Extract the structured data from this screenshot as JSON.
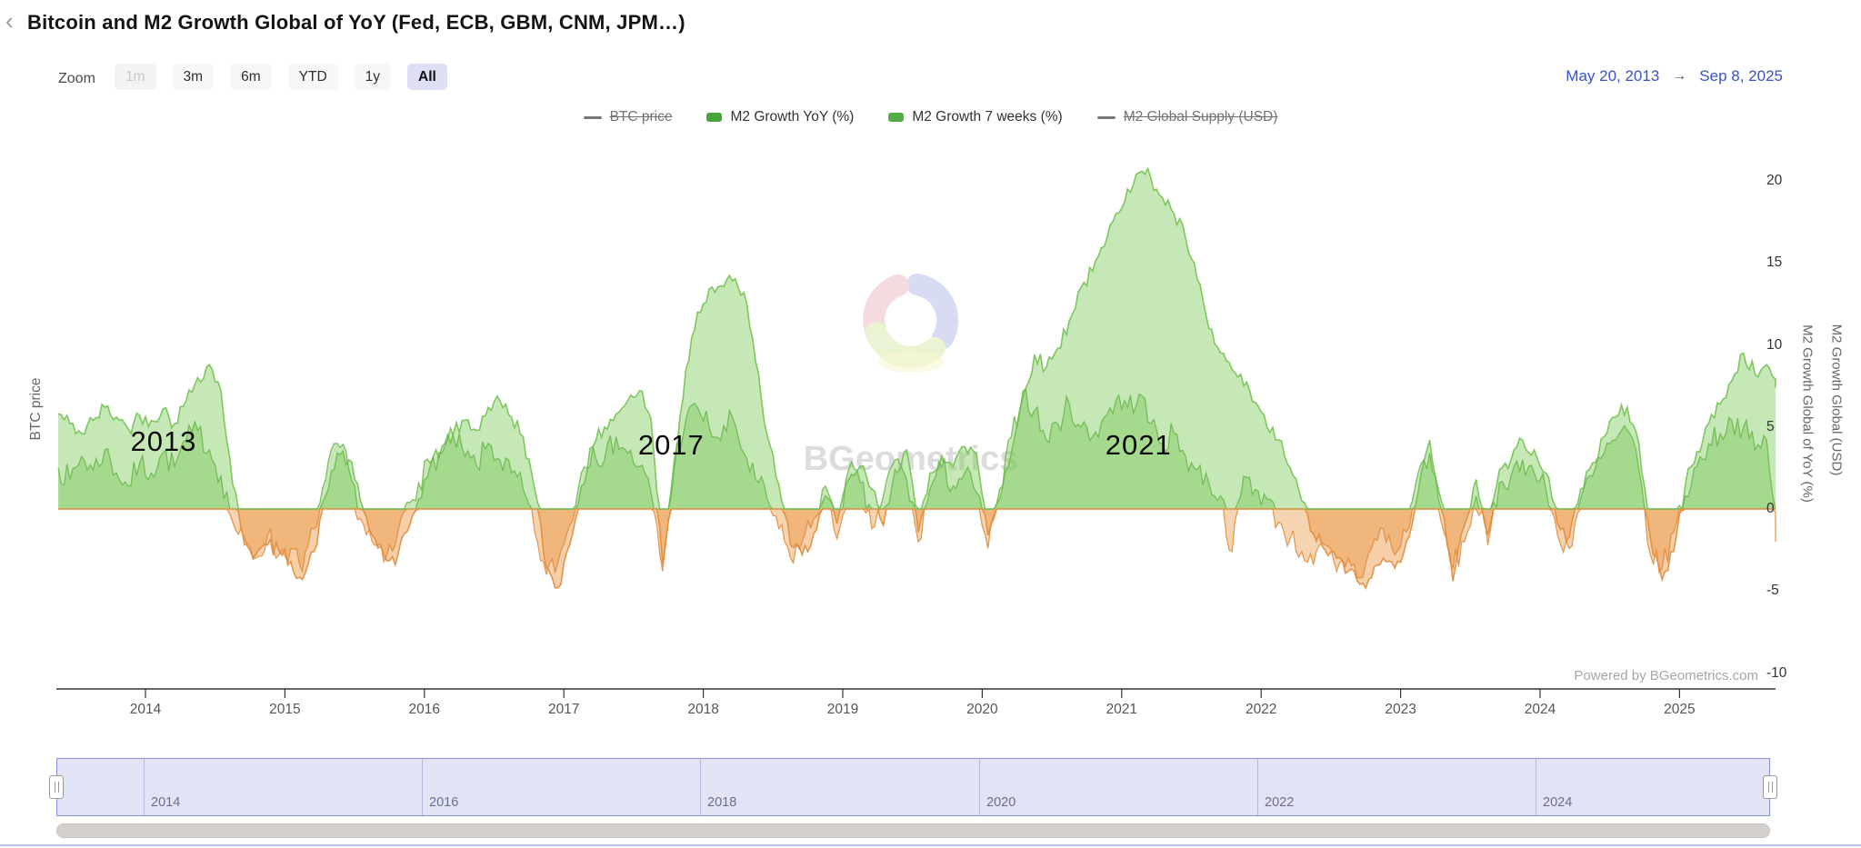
{
  "header": {
    "back_chevron": "‹",
    "title": "Bitcoin and M2 Growth Global of YoY (Fed, ECB, GBM, CNM, JPM…)"
  },
  "range_selector": {
    "zoom_label": "Zoom",
    "buttons": [
      {
        "label": "1m",
        "state": "disabled"
      },
      {
        "label": "3m",
        "state": "normal"
      },
      {
        "label": "6m",
        "state": "normal"
      },
      {
        "label": "YTD",
        "state": "normal"
      },
      {
        "label": "1y",
        "state": "normal"
      },
      {
        "label": "All",
        "state": "selected"
      }
    ],
    "date_from": "May 20, 2013",
    "arrow": "→",
    "date_to": "Sep 8, 2025"
  },
  "legend": {
    "items": [
      {
        "label": "BTC price",
        "marker": "line",
        "color": "#777777",
        "disabled": true
      },
      {
        "label": "M2 Growth YoY (%)",
        "marker": "square",
        "color": "#47a53a",
        "disabled": false
      },
      {
        "label": "M2 Growth 7 weeks (%)",
        "marker": "square",
        "color": "#52ae43",
        "disabled": false
      },
      {
        "label": "M2 Global Supply (USD)",
        "marker": "line",
        "color": "#777777",
        "disabled": true
      }
    ]
  },
  "watermark": {
    "text": "BGeometrics"
  },
  "powered_by": "Powered by BGeometrics.com",
  "navigator": {
    "labels": [
      "2014",
      "2016",
      "2018",
      "2020",
      "2022",
      "2024"
    ],
    "years": [
      2014,
      2016,
      2018,
      2020,
      2022,
      2024
    ]
  },
  "chart_data": {
    "type": "area",
    "title": "Bitcoin and M2 Growth Global of YoY",
    "x_axis": {
      "labels": [
        "2014",
        "2015",
        "2016",
        "2017",
        "2018",
        "2019",
        "2020",
        "2021",
        "2022",
        "2023",
        "2024",
        "2025"
      ],
      "years": [
        2014,
        2015,
        2016,
        2017,
        2018,
        2019,
        2020,
        2021,
        2022,
        2023,
        2024,
        2025
      ],
      "range_decimal_years": [
        2013.38,
        2025.69
      ]
    },
    "y_axis": {
      "ticks": [
        20,
        15,
        10,
        5,
        0,
        -5,
        -10
      ],
      "range": [
        -11,
        22
      ],
      "title_left": "BTC price",
      "title_right_inner": "M2 Growth Global of YoY (%)",
      "title_right_outer": "M2 Growth Global (USD)",
      "grid": false
    },
    "legend_position": "top",
    "sampling": {
      "cadence": "monthly",
      "start_year": 2013,
      "start_month": 5,
      "end_year": 2025,
      "end_month": 9
    },
    "series": [
      {
        "name": "M2 Growth YoY (%)",
        "positive_fill": "rgba(128,204,93,0.45)",
        "negative_fill": "rgba(235,147,60,0.45)",
        "positive_stroke": "rgba(110,190,75,0.85)",
        "negative_stroke": "rgba(225,140,60,0.9)",
        "values": [
          5.8,
          5.2,
          4.6,
          5.4,
          6.2,
          5.6,
          4.9,
          5.7,
          5.4,
          6.1,
          5.2,
          6.6,
          8.0,
          8.8,
          7.2,
          1.5,
          -1.8,
          -2.8,
          -2.2,
          -2.6,
          -3.2,
          -4.3,
          -2.6,
          0.8,
          3.4,
          3.0,
          0.5,
          -1.6,
          -2.8,
          -3.4,
          -1.4,
          0.6,
          2.6,
          3.8,
          4.6,
          5.4,
          4.8,
          6.2,
          6.6,
          5.6,
          4.4,
          1.2,
          -3.6,
          -4.8,
          -2.2,
          1.4,
          3.8,
          5.0,
          5.8,
          6.6,
          7.2,
          5.5,
          -3.4,
          2.5,
          8.5,
          12.0,
          13.4,
          13.6,
          13.9,
          13.2,
          9.0,
          4.5,
          1.5,
          -2.2,
          -2.8,
          -1.5,
          0.8,
          -0.9,
          1.8,
          2.6,
          1.2,
          -1.0,
          2.4,
          3.6,
          -1.4,
          2.2,
          3.2,
          2.6,
          3.8,
          3.4,
          -1.6,
          1.2,
          3.4,
          6.8,
          9.4,
          8.6,
          9.8,
          11.5,
          13.5,
          14.5,
          16.0,
          18.0,
          19.5,
          20.5,
          20.2,
          19.0,
          18.0,
          16.5,
          14.0,
          11.0,
          9.5,
          8.5,
          7.5,
          6.5,
          5.0,
          4.2,
          2.5,
          0.5,
          -1.5,
          -2.5,
          -3.0,
          -3.8,
          -4.6,
          -4.2,
          -3.0,
          -3.6,
          -2.0,
          1.0,
          4.2,
          0.5,
          -4.4,
          -1.0,
          1.8,
          -1.6,
          2.4,
          3.0,
          4.2,
          3.6,
          2.2,
          -0.9,
          -1.7,
          1.2,
          2.8,
          4.4,
          5.6,
          6.2,
          4.0,
          -1.8,
          -4.3,
          -2.6,
          1.5,
          3.5,
          5.2,
          6.4,
          7.8,
          9.5,
          8.2,
          8.8,
          7.4
        ]
      },
      {
        "name": "M2 Growth 7 weeks (%)",
        "positive_fill": "rgba(116,196,80,0.40)",
        "negative_fill": "rgba(235,147,60,0.40)",
        "positive_stroke": "rgba(100,180,70,0.8)",
        "negative_stroke": "rgba(225,140,60,0.85)",
        "values": [
          2.5,
          1.8,
          3.2,
          2.4,
          3.6,
          2.2,
          1.4,
          2.8,
          2.2,
          3.4,
          2.6,
          4.2,
          4.8,
          3.6,
          2.0,
          -0.8,
          -2.2,
          -3.0,
          -1.6,
          -2.8,
          -2.4,
          -3.8,
          -1.2,
          1.8,
          4.0,
          2.4,
          -0.6,
          -2.0,
          -3.2,
          -2.2,
          0.4,
          1.6,
          2.8,
          3.4,
          4.4,
          3.2,
          2.6,
          4.0,
          3.0,
          2.2,
          1.2,
          -1.4,
          -4.0,
          -3.2,
          -1.0,
          2.2,
          3.8,
          3.0,
          4.4,
          3.4,
          2.6,
          1.0,
          -3.8,
          3.0,
          5.4,
          6.2,
          5.0,
          4.2,
          5.6,
          3.4,
          1.8,
          0.6,
          -1.2,
          -3.0,
          -2.0,
          -0.6,
          1.4,
          -1.8,
          2.4,
          1.6,
          -1.2,
          0.8,
          3.0,
          1.8,
          -2.0,
          1.2,
          2.6,
          1.4,
          2.2,
          1.0,
          -2.4,
          0.6,
          4.4,
          7.2,
          6.0,
          4.2,
          5.2,
          6.4,
          5.0,
          4.4,
          5.6,
          6.6,
          6.2,
          7.0,
          5.2,
          4.0,
          4.6,
          3.2,
          2.4,
          1.6,
          0.8,
          -2.6,
          2.0,
          1.2,
          0.6,
          -0.8,
          -1.8,
          -2.6,
          -3.4,
          -2.2,
          -3.8,
          -3.0,
          -4.2,
          -2.4,
          -1.2,
          -2.8,
          -1.4,
          2.2,
          3.4,
          -0.8,
          -3.6,
          -2.0,
          0.8,
          -2.2,
          1.6,
          2.0,
          3.0,
          2.2,
          1.2,
          -1.6,
          -2.4,
          0.6,
          2.0,
          3.4,
          4.2,
          4.8,
          2.4,
          -2.8,
          -3.6,
          -1.4,
          0.8,
          2.6,
          4.0,
          4.6,
          5.4,
          5.0,
          3.6,
          4.2,
          -2.0
        ]
      },
      {
        "name": "BTC price",
        "hidden": true,
        "values": []
      },
      {
        "name": "M2 Global Supply (USD)",
        "hidden": true,
        "values": []
      }
    ],
    "annotations": [
      {
        "text": "2013",
        "x_decimal_year": 2014.13,
        "value": 4.1
      },
      {
        "text": "2017",
        "x_decimal_year": 2017.77,
        "value": 3.9
      },
      {
        "text": "2021",
        "x_decimal_year": 2021.12,
        "value": 3.9
      }
    ]
  }
}
